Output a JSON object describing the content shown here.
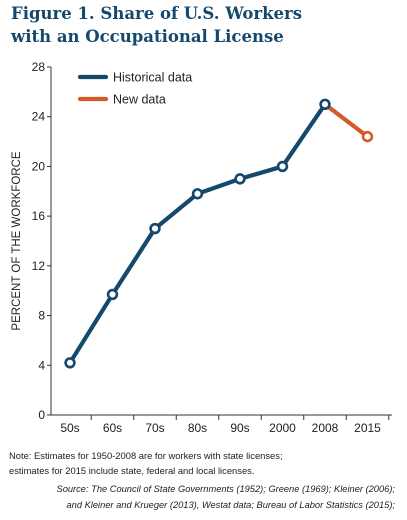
{
  "title_line1": "Figure 1. Share of U.S. Workers",
  "title_line2": "with an Occupational License",
  "note_line1": "Note: Estimates for  1950-2008 are for workers with state licenses;",
  "note_line2": "estimates for 2015 include state, federal and local licenses.",
  "source_line1": "Source:  The Council of State Governments (1952); Greene (1969); Kleiner (2006);",
  "source_line2": "and Kleiner and Krueger (2013), Westat data; Bureau of Labor Statistics (2015);",
  "colors": {
    "historical": "#15486d",
    "new": "#d45a2b",
    "title": "#15486d"
  },
  "chart_data": {
    "type": "line",
    "title": "Figure 1. Share of U.S. Workers with an Occupational License",
    "xlabel": "",
    "ylabel": "PERCENT OF THE WORKFORCE",
    "categories": [
      "50s",
      "60s",
      "70s",
      "80s",
      "90s",
      "2000",
      "2008",
      "2015"
    ],
    "ylim": [
      0,
      28
    ],
    "yticks": [
      0,
      4,
      8,
      12,
      16,
      20,
      24,
      28
    ],
    "grid": false,
    "legend_position": "top-left",
    "series": [
      {
        "name": "Historical data",
        "color": "#15486d",
        "x": [
          "50s",
          "60s",
          "70s",
          "80s",
          "90s",
          "2000",
          "2008"
        ],
        "values": [
          4.2,
          9.7,
          15.0,
          17.8,
          19.0,
          20.0,
          25.0
        ]
      },
      {
        "name": "New data",
        "color": "#d45a2b",
        "x": [
          "2008",
          "2015"
        ],
        "values": [
          25.0,
          22.4
        ]
      }
    ]
  }
}
